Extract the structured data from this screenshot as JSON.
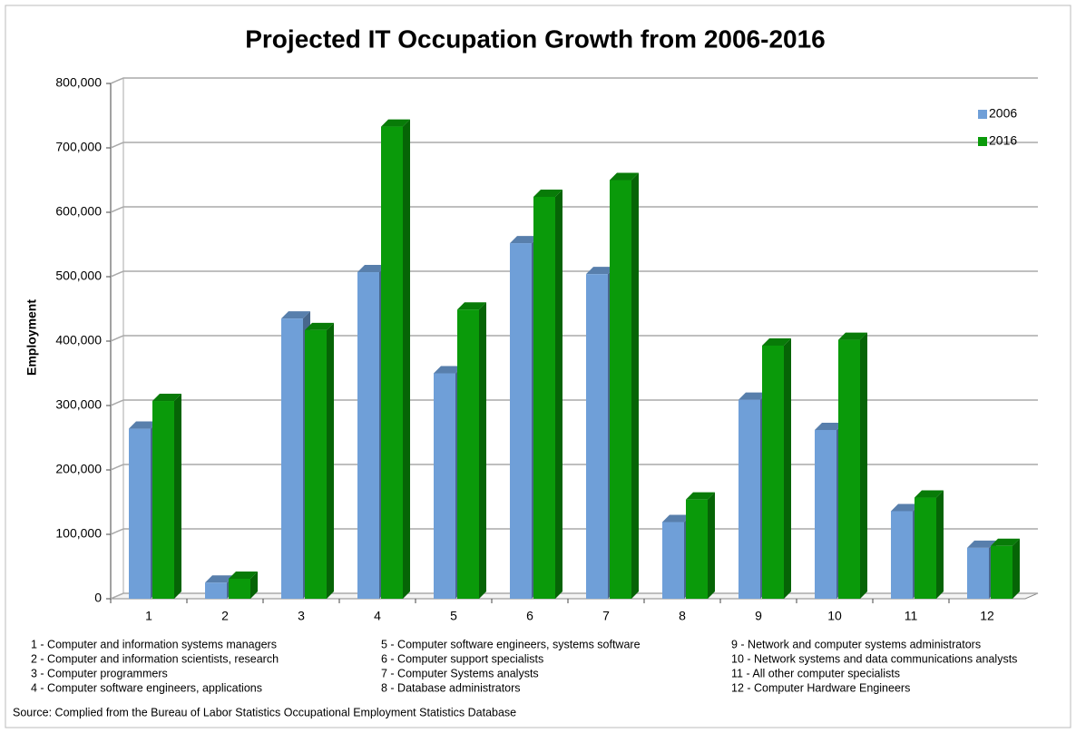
{
  "chart_data": {
    "type": "bar3d",
    "title": "Projected IT Occupation Growth from 2006-2016",
    "y_label": "Employment",
    "categories": [
      "1",
      "2",
      "3",
      "4",
      "5",
      "6",
      "7",
      "8",
      "9",
      "10",
      "11",
      "12"
    ],
    "series": [
      {
        "name": "2006",
        "color": "#6f9fd8",
        "values": [
          264000,
          25000,
          435000,
          507000,
          350000,
          552000,
          504000,
          119000,
          309000,
          262000,
          136000,
          79000
        ]
      },
      {
        "name": "2016",
        "color": "#0a9a0a",
        "values": [
          307000,
          31000,
          417000,
          733000,
          449000,
          624000,
          650000,
          154000,
          393000,
          402000,
          157000,
          82000
        ]
      }
    ],
    "ylim": [
      0,
      800000
    ],
    "yticks": [
      0,
      {
        "value": 100000,
        "label": "100,000"
      },
      {
        "value": 200000,
        "label": "200,000"
      },
      {
        "value": 300000,
        "label": "300,000"
      },
      {
        "value": 400000,
        "label": "400,000"
      },
      {
        "value": 500000,
        "label": "500,000"
      },
      {
        "value": 600000,
        "label": "600,000"
      },
      {
        "value": 700000,
        "label": "700,000"
      },
      {
        "value": 800000,
        "label": "800,000"
      }
    ],
    "grid": true,
    "legend": "top-right",
    "notes": [
      "1 - Computer and information systems managers",
      "2 - Computer and information scientists, research",
      "3 - Computer programmers",
      "4 - Computer software engineers, applications",
      "5 - Computer software engineers, systems software",
      "6 - Computer support specialists",
      "7 - Computer Systems analysts",
      "8 - Database administrators",
      "9 - Network and computer systems administrators",
      "10 - Network systems and data communications analysts",
      "11 - All other computer specialists",
      "12 - Computer Hardware Engineers"
    ],
    "source": "Source: Complied from the Bureau of Labor Statistics Occupational Employment Statistics Database"
  }
}
